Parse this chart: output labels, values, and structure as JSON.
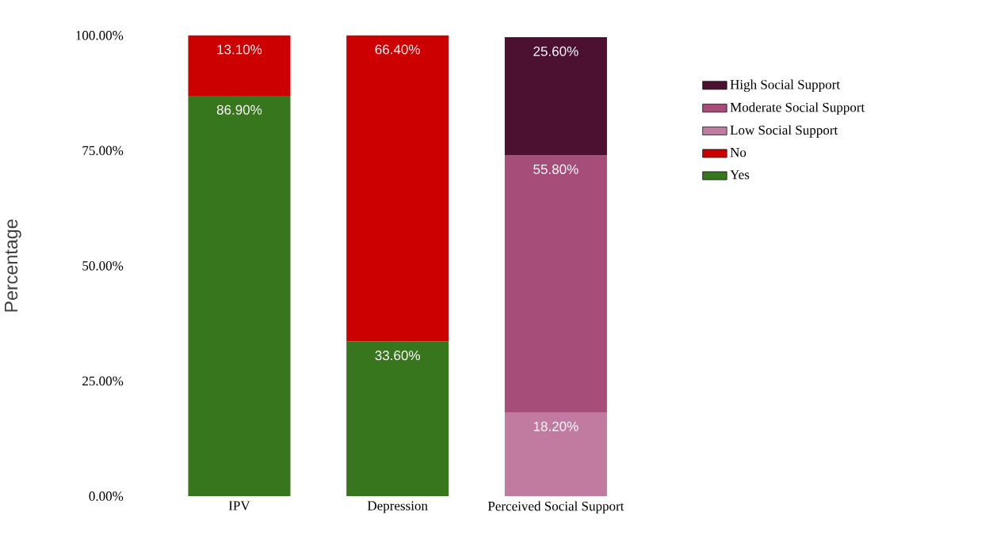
{
  "chart_data": {
    "type": "bar",
    "stacked": true,
    "ylabel": "Percentage",
    "categories": [
      "IPV",
      "Depression",
      "Perceived Social Support"
    ],
    "series": [
      {
        "name": "Yes",
        "color": "#38761d",
        "values": [
          86.9,
          33.6,
          null
        ],
        "value_labels": [
          "86.90%",
          "33.60%",
          null
        ]
      },
      {
        "name": "No",
        "color": "#cc0000",
        "values": [
          13.1,
          66.4,
          null
        ],
        "value_labels": [
          "13.10%",
          "66.40%",
          null
        ]
      },
      {
        "name": "Low Social Support",
        "color": "#c27ba0",
        "values": [
          null,
          null,
          18.2
        ],
        "value_labels": [
          null,
          null,
          "18.20%"
        ]
      },
      {
        "name": "Moderate Social Support",
        "color": "#a64d79",
        "values": [
          null,
          null,
          55.8
        ],
        "value_labels": [
          null,
          null,
          "55.80%"
        ]
      },
      {
        "name": "High Social Support",
        "color": "#4c1130",
        "values": [
          null,
          null,
          25.6
        ],
        "value_labels": [
          null,
          null,
          "25.60%"
        ]
      }
    ],
    "ylim": [
      0,
      100
    ],
    "yticks": [
      {
        "value": 0,
        "label": "0.00%"
      },
      {
        "value": 25,
        "label": "25.00%"
      },
      {
        "value": 50,
        "label": "50.00%"
      },
      {
        "value": 75,
        "label": "75.00%"
      },
      {
        "value": 100,
        "label": "100.00%"
      }
    ],
    "legend": "right",
    "grid": false
  }
}
